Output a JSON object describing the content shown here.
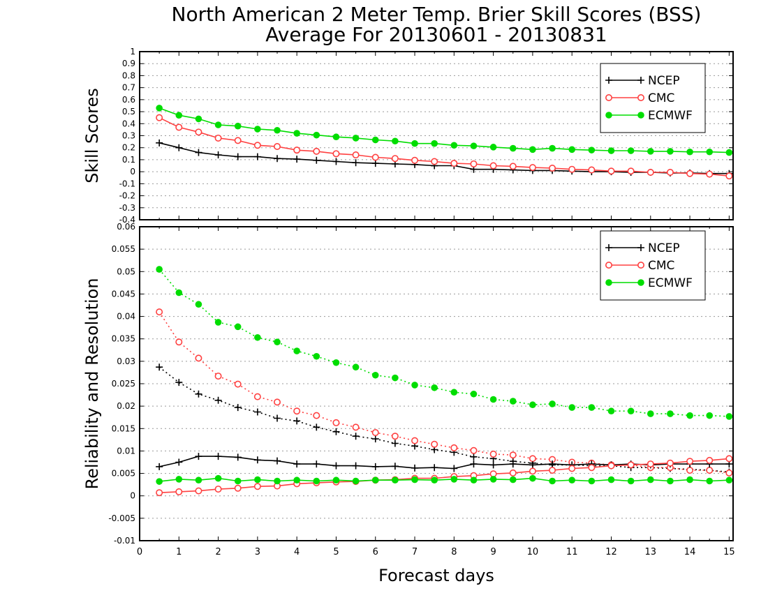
{
  "title": {
    "line1": "North American 2 Meter Temp. Brier Skill Scores (BSS)",
    "line2": "Average For 20130601 - 20130831"
  },
  "chart_data": [
    {
      "type": "line",
      "panel": "top",
      "ylabel": "Skill Scores",
      "xlabel": "",
      "xlim": [
        0,
        15.1
      ],
      "ylim": [
        -0.4,
        1
      ],
      "ytick_step": 0.1,
      "ytick_labels": [
        "-0.4",
        "-0.3",
        "-0.2",
        "-0.1",
        "0",
        "0.1",
        "0.2",
        "0.3",
        "0.4",
        "0.5",
        "0.6",
        "0.7",
        "0.8",
        "0.9",
        "1"
      ],
      "grid": true,
      "legend_position": "top-right",
      "x": [
        0.5,
        1,
        1.5,
        2,
        2.5,
        3,
        3.5,
        4,
        4.5,
        5,
        5.5,
        6,
        6.5,
        7,
        7.5,
        8,
        8.5,
        9,
        9.5,
        10,
        10.5,
        11,
        11.5,
        12,
        12.5,
        13,
        13.5,
        14,
        14.5,
        15
      ],
      "series": [
        {
          "name": "NCEP",
          "color": "#000000",
          "marker": "plus",
          "style": "solid",
          "values": [
            0.24,
            0.2,
            0.16,
            0.14,
            0.125,
            0.125,
            0.11,
            0.105,
            0.095,
            0.085,
            0.075,
            0.07,
            0.065,
            0.06,
            0.05,
            0.05,
            0.02,
            0.02,
            0.015,
            0.01,
            0.01,
            0.005,
            0,
            0,
            -0.005,
            -0.005,
            -0.01,
            -0.01,
            -0.015,
            -0.015
          ]
        },
        {
          "name": "CMC",
          "color": "#ff4040",
          "marker": "open-circle",
          "style": "solid",
          "values": [
            0.45,
            0.37,
            0.33,
            0.28,
            0.26,
            0.22,
            0.21,
            0.18,
            0.17,
            0.15,
            0.14,
            0.12,
            0.11,
            0.095,
            0.085,
            0.07,
            0.065,
            0.05,
            0.045,
            0.035,
            0.03,
            0.02,
            0.015,
            0.005,
            0.005,
            -0.005,
            -0.005,
            -0.015,
            -0.02,
            -0.035
          ]
        },
        {
          "name": "ECMWF",
          "color": "#00dd00",
          "marker": "filled-circle",
          "style": "solid",
          "values": [
            0.53,
            0.47,
            0.44,
            0.39,
            0.38,
            0.355,
            0.345,
            0.32,
            0.305,
            0.29,
            0.28,
            0.265,
            0.255,
            0.235,
            0.235,
            0.22,
            0.215,
            0.205,
            0.195,
            0.185,
            0.195,
            0.185,
            0.18,
            0.175,
            0.175,
            0.17,
            0.17,
            0.165,
            0.165,
            0.16
          ]
        }
      ]
    },
    {
      "type": "line",
      "panel": "bottom",
      "ylabel": "Reliability and Resolution",
      "xlabel": "Forecast days",
      "xlim": [
        0,
        15.1
      ],
      "ylim": [
        -0.01,
        0.06
      ],
      "xtick_labels": [
        "0",
        "1",
        "2",
        "3",
        "4",
        "5",
        "6",
        "7",
        "8",
        "9",
        "10",
        "11",
        "12",
        "13",
        "14",
        "15"
      ],
      "ytick_step": 0.005,
      "ytick_labels": [
        "-0.01",
        "-0.005",
        "0",
        "0.005",
        "0.01",
        "0.015",
        "0.02",
        "0.025",
        "0.03",
        "0.035",
        "0.04",
        "0.045",
        "0.05",
        "0.055",
        "0.06"
      ],
      "grid": true,
      "legend_position": "top-right",
      "x": [
        0.5,
        1,
        1.5,
        2,
        2.5,
        3,
        3.5,
        4,
        4.5,
        5,
        5.5,
        6,
        6.5,
        7,
        7.5,
        8,
        8.5,
        9,
        9.5,
        10,
        10.5,
        11,
        11.5,
        12,
        12.5,
        13,
        13.5,
        14,
        14.5,
        15
      ],
      "series": [
        {
          "name": "NCEP",
          "color": "#000000",
          "marker": "plus",
          "style": "dotted",
          "group": "resolution",
          "legend": false,
          "values": [
            0.0287,
            0.0253,
            0.0227,
            0.0213,
            0.0197,
            0.0187,
            0.0173,
            0.0167,
            0.0153,
            0.0143,
            0.0133,
            0.0127,
            0.0117,
            0.0111,
            0.0103,
            0.0097,
            0.0087,
            0.0083,
            0.0077,
            0.0073,
            0.0069,
            0.0069,
            0.0067,
            0.0067,
            0.0063,
            0.0063,
            0.0061,
            0.0059,
            0.0057,
            0.0053
          ]
        },
        {
          "name": "CMC",
          "color": "#ff4040",
          "marker": "open-circle",
          "style": "dotted",
          "group": "resolution",
          "legend": false,
          "values": [
            0.041,
            0.0343,
            0.0307,
            0.0267,
            0.0249,
            0.0221,
            0.0209,
            0.0189,
            0.0179,
            0.0163,
            0.0153,
            0.0141,
            0.0133,
            0.0123,
            0.0115,
            0.0107,
            0.0101,
            0.0093,
            0.0091,
            0.0083,
            0.0081,
            0.0075,
            0.0073,
            0.0069,
            0.0069,
            0.0063,
            0.0063,
            0.0057,
            0.0057,
            0.0051
          ]
        },
        {
          "name": "ECMWF",
          "color": "#00dd00",
          "marker": "filled-circle",
          "style": "dotted",
          "group": "resolution",
          "legend": false,
          "values": [
            0.0505,
            0.0453,
            0.0427,
            0.0387,
            0.0377,
            0.0353,
            0.0343,
            0.0323,
            0.0311,
            0.0297,
            0.0287,
            0.0269,
            0.0263,
            0.0247,
            0.0241,
            0.0231,
            0.0227,
            0.0215,
            0.0211,
            0.0203,
            0.0205,
            0.0197,
            0.0197,
            0.0189,
            0.0189,
            0.0183,
            0.0183,
            0.0179,
            0.0179,
            0.0177
          ]
        },
        {
          "name": "NCEP",
          "color": "#000000",
          "marker": "plus",
          "style": "solid",
          "group": "reliability",
          "legend": true,
          "values": [
            0.0065,
            0.0075,
            0.0088,
            0.0088,
            0.0086,
            0.008,
            0.0078,
            0.0071,
            0.0071,
            0.0067,
            0.0067,
            0.0065,
            0.0066,
            0.0062,
            0.0063,
            0.0061,
            0.0071,
            0.0069,
            0.0071,
            0.0069,
            0.0071,
            0.0069,
            0.0071,
            0.0069,
            0.0071,
            0.0069,
            0.0071,
            0.0071,
            0.0071,
            0.0071
          ]
        },
        {
          "name": "CMC",
          "color": "#ff4040",
          "marker": "open-circle",
          "style": "solid",
          "group": "reliability",
          "legend": true,
          "values": [
            0.0007,
            0.0009,
            0.0011,
            0.0015,
            0.0017,
            0.0021,
            0.0022,
            0.0027,
            0.0029,
            0.0031,
            0.0032,
            0.0035,
            0.0036,
            0.0039,
            0.0039,
            0.0043,
            0.0045,
            0.0049,
            0.0051,
            0.0055,
            0.0057,
            0.0061,
            0.0063,
            0.0067,
            0.0069,
            0.0071,
            0.0073,
            0.0077,
            0.0079,
            0.0083
          ]
        },
        {
          "name": "ECMWF",
          "color": "#00dd00",
          "marker": "filled-circle",
          "style": "solid",
          "group": "reliability",
          "legend": true,
          "values": [
            0.0032,
            0.0037,
            0.0035,
            0.0039,
            0.0033,
            0.0036,
            0.0033,
            0.0035,
            0.0033,
            0.0035,
            0.0033,
            0.0035,
            0.0035,
            0.0036,
            0.0035,
            0.0037,
            0.0035,
            0.0037,
            0.0036,
            0.0039,
            0.0033,
            0.0035,
            0.0033,
            0.0036,
            0.0033,
            0.0036,
            0.0033,
            0.0036,
            0.0033,
            0.0035
          ]
        }
      ]
    }
  ]
}
